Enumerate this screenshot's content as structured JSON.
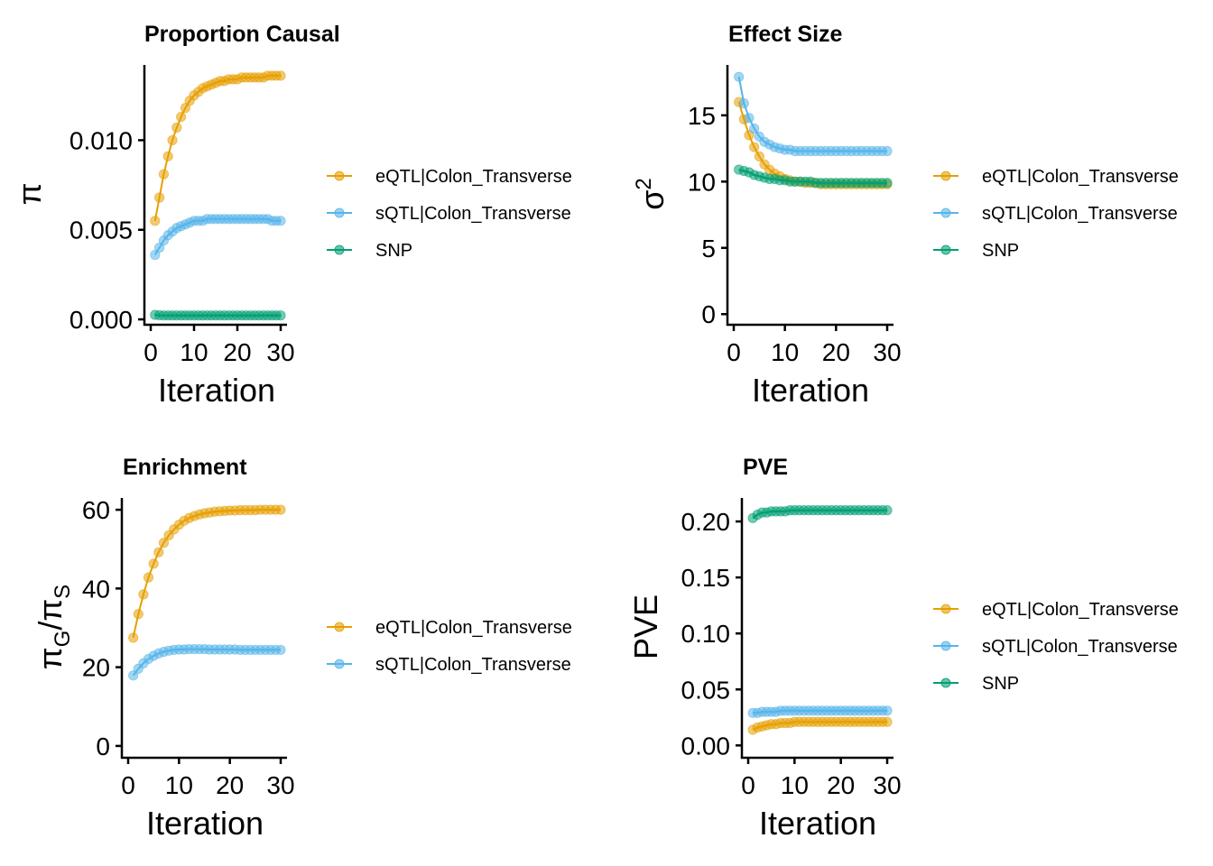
{
  "colors": {
    "eQTL": "#E69F00",
    "sQTL": "#56B4E9",
    "SNP": "#009E73"
  },
  "chart_data": [
    {
      "type": "line",
      "title": "Proportion Causal",
      "xlabel": "Iteration",
      "ylabel": "π",
      "xlim": [
        0,
        30
      ],
      "ylim": [
        -0.0003,
        0.0142
      ],
      "xticks": [
        0,
        10,
        20,
        30
      ],
      "yticks": [
        0.0,
        0.005,
        0.01
      ],
      "ytick_labels": [
        "0.000",
        "0.005",
        "0.010"
      ],
      "grid": false,
      "legend": "right",
      "x": [
        1,
        2,
        3,
        4,
        5,
        6,
        7,
        8,
        9,
        10,
        11,
        12,
        13,
        14,
        15,
        16,
        17,
        18,
        19,
        20,
        21,
        22,
        23,
        24,
        25,
        26,
        27,
        28,
        29,
        30
      ],
      "series": [
        {
          "name": "eQTL|Colon_Transverse",
          "color_key": "eQTL",
          "values": [
            0.0055,
            0.0068,
            0.0081,
            0.0091,
            0.01,
            0.0107,
            0.0113,
            0.0118,
            0.0122,
            0.0125,
            0.0127,
            0.0129,
            0.013,
            0.0131,
            0.0132,
            0.0133,
            0.0133,
            0.0134,
            0.0134,
            0.0134,
            0.0135,
            0.0135,
            0.0135,
            0.0135,
            0.0135,
            0.0135,
            0.0136,
            0.0136,
            0.0136,
            0.0136
          ]
        },
        {
          "name": "sQTL|Colon_Transverse",
          "color_key": "sQTL",
          "values": [
            0.0036,
            0.004,
            0.0044,
            0.0047,
            0.0049,
            0.0051,
            0.0052,
            0.0053,
            0.0054,
            0.0055,
            0.0055,
            0.0055,
            0.0056,
            0.0056,
            0.0056,
            0.0056,
            0.0056,
            0.0056,
            0.0056,
            0.0056,
            0.0056,
            0.0056,
            0.0056,
            0.0056,
            0.0056,
            0.0056,
            0.0056,
            0.0055,
            0.0055,
            0.0055
          ]
        },
        {
          "name": "SNP",
          "color_key": "SNP",
          "values": [
            0.00025,
            0.00023,
            0.00022,
            0.00022,
            0.00022,
            0.00022,
            0.00022,
            0.00022,
            0.00022,
            0.00022,
            0.00022,
            0.00022,
            0.00022,
            0.00022,
            0.00022,
            0.00022,
            0.00022,
            0.00022,
            0.00022,
            0.00022,
            0.00022,
            0.00022,
            0.00022,
            0.00022,
            0.00022,
            0.00022,
            0.00022,
            0.00022,
            0.00022,
            0.00022
          ]
        }
      ]
    },
    {
      "type": "line",
      "title": "Effect Size",
      "xlabel": "Iteration",
      "ylabel": "σ",
      "ylabel_sup": "2",
      "xlim": [
        0,
        30
      ],
      "ylim": [
        -0.8,
        18.8
      ],
      "xticks": [
        0,
        10,
        20,
        30
      ],
      "yticks": [
        0,
        5,
        10,
        15
      ],
      "ytick_labels": [
        "0",
        "5",
        "10",
        "15"
      ],
      "grid": false,
      "legend": "right",
      "x": [
        1,
        2,
        3,
        4,
        5,
        6,
        7,
        8,
        9,
        10,
        11,
        12,
        13,
        14,
        15,
        16,
        17,
        18,
        19,
        20,
        21,
        22,
        23,
        24,
        25,
        26,
        27,
        28,
        29,
        30
      ],
      "series": [
        {
          "name": "eQTL|Colon_Transverse",
          "color_key": "eQTL",
          "values": [
            16.0,
            14.7,
            13.5,
            12.6,
            11.9,
            11.3,
            10.9,
            10.6,
            10.4,
            10.2,
            10.1,
            10.0,
            10.0,
            9.9,
            9.9,
            9.9,
            9.8,
            9.8,
            9.8,
            9.8,
            9.8,
            9.8,
            9.8,
            9.8,
            9.8,
            9.8,
            9.8,
            9.8,
            9.8,
            9.8
          ]
        },
        {
          "name": "sQTL|Colon_Transverse",
          "color_key": "sQTL",
          "values": [
            17.9,
            15.9,
            14.8,
            14.0,
            13.4,
            13.0,
            12.8,
            12.6,
            12.5,
            12.4,
            12.4,
            12.3,
            12.3,
            12.3,
            12.3,
            12.3,
            12.3,
            12.3,
            12.3,
            12.3,
            12.3,
            12.3,
            12.3,
            12.3,
            12.3,
            12.3,
            12.3,
            12.3,
            12.3,
            12.3
          ]
        },
        {
          "name": "SNP",
          "color_key": "SNP",
          "values": [
            10.9,
            10.8,
            10.7,
            10.5,
            10.4,
            10.3,
            10.2,
            10.2,
            10.1,
            10.1,
            10.0,
            10.0,
            10.0,
            10.0,
            10.0,
            9.9,
            9.9,
            9.9,
            9.9,
            9.9,
            9.9,
            9.9,
            9.9,
            9.9,
            9.9,
            9.9,
            9.9,
            9.9,
            9.9,
            9.9
          ]
        }
      ]
    },
    {
      "type": "line",
      "title": "Enrichment",
      "xlabel": "Iteration",
      "ylabel": "πG/πS",
      "xlim": [
        0,
        30
      ],
      "ylim": [
        -3,
        63
      ],
      "xticks": [
        0,
        10,
        20,
        30
      ],
      "yticks": [
        0,
        20,
        40,
        60
      ],
      "ytick_labels": [
        "0",
        "20",
        "40",
        "60"
      ],
      "grid": false,
      "legend": "right",
      "x": [
        1,
        2,
        3,
        4,
        5,
        6,
        7,
        8,
        9,
        10,
        11,
        12,
        13,
        14,
        15,
        16,
        17,
        18,
        19,
        20,
        21,
        22,
        23,
        24,
        25,
        26,
        27,
        28,
        29,
        30
      ],
      "series": [
        {
          "name": "eQTL|Colon_Transverse",
          "color_key": "eQTL",
          "values": [
            27.5,
            33.5,
            38.5,
            42.8,
            46.3,
            49.2,
            51.6,
            53.5,
            55.0,
            56.2,
            57.2,
            57.9,
            58.4,
            58.8,
            59.1,
            59.3,
            59.5,
            59.6,
            59.7,
            59.8,
            59.8,
            59.9,
            59.9,
            59.9,
            59.9,
            60.0,
            60.0,
            60.0,
            60.0,
            60.0
          ]
        },
        {
          "name": "sQTL|Colon_Transverse",
          "color_key": "sQTL",
          "values": [
            17.9,
            19.6,
            21.0,
            22.1,
            22.9,
            23.5,
            23.9,
            24.2,
            24.4,
            24.5,
            24.5,
            24.6,
            24.6,
            24.6,
            24.6,
            24.5,
            24.5,
            24.5,
            24.5,
            24.5,
            24.5,
            24.4,
            24.4,
            24.4,
            24.4,
            24.4,
            24.4,
            24.4,
            24.4,
            24.4
          ]
        }
      ]
    },
    {
      "type": "line",
      "title": "PVE",
      "xlabel": "Iteration",
      "ylabel": "PVE",
      "xlim": [
        0,
        30
      ],
      "ylim": [
        -0.011,
        0.221
      ],
      "xticks": [
        0,
        10,
        20,
        30
      ],
      "yticks": [
        0.0,
        0.05,
        0.1,
        0.15,
        0.2
      ],
      "ytick_labels": [
        "0.00",
        "0.05",
        "0.10",
        "0.15",
        "0.20"
      ],
      "grid": false,
      "legend": "right",
      "x": [
        1,
        2,
        3,
        4,
        5,
        6,
        7,
        8,
        9,
        10,
        11,
        12,
        13,
        14,
        15,
        16,
        17,
        18,
        19,
        20,
        21,
        22,
        23,
        24,
        25,
        26,
        27,
        28,
        29,
        30
      ],
      "series": [
        {
          "name": "eQTL|Colon_Transverse",
          "color_key": "eQTL",
          "values": [
            0.014,
            0.016,
            0.017,
            0.018,
            0.019,
            0.019,
            0.02,
            0.02,
            0.02,
            0.021,
            0.021,
            0.021,
            0.021,
            0.021,
            0.021,
            0.021,
            0.021,
            0.021,
            0.021,
            0.021,
            0.021,
            0.021,
            0.021,
            0.021,
            0.021,
            0.021,
            0.021,
            0.021,
            0.021,
            0.021
          ]
        },
        {
          "name": "sQTL|Colon_Transverse",
          "color_key": "sQTL",
          "values": [
            0.029,
            0.029,
            0.03,
            0.03,
            0.03,
            0.03,
            0.031,
            0.031,
            0.031,
            0.031,
            0.031,
            0.031,
            0.031,
            0.031,
            0.031,
            0.031,
            0.031,
            0.031,
            0.031,
            0.031,
            0.031,
            0.031,
            0.031,
            0.031,
            0.031,
            0.031,
            0.031,
            0.031,
            0.031,
            0.031
          ]
        },
        {
          "name": "SNP",
          "color_key": "SNP",
          "values": [
            0.203,
            0.206,
            0.208,
            0.208,
            0.209,
            0.209,
            0.209,
            0.209,
            0.21,
            0.21,
            0.21,
            0.21,
            0.21,
            0.21,
            0.21,
            0.21,
            0.21,
            0.21,
            0.21,
            0.21,
            0.21,
            0.21,
            0.21,
            0.21,
            0.21,
            0.21,
            0.21,
            0.21,
            0.21,
            0.21
          ]
        }
      ]
    }
  ]
}
